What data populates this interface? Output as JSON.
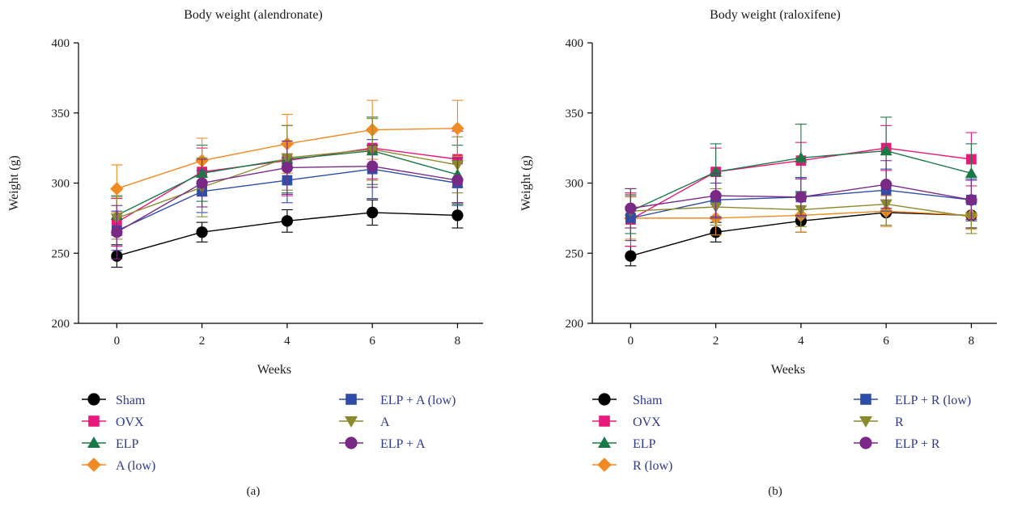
{
  "chart_data": [
    {
      "type": "line",
      "panel_label": "(a)",
      "title": "Body weight (alendronate)",
      "xlabel": "Weeks",
      "ylabel": "Weight (g)",
      "x": [
        0,
        2,
        4,
        6,
        8
      ],
      "xlim": [
        -0.9,
        8.6
      ],
      "ylim": [
        200,
        400
      ],
      "yticks": [
        200,
        250,
        300,
        350,
        400
      ],
      "xticks": [
        0,
        2,
        4,
        6,
        8
      ],
      "grid": false,
      "legend_position": "bottom",
      "series": [
        {
          "name": "Sham",
          "color": "#000000",
          "marker": "circle",
          "values": [
            248,
            265,
            273,
            279,
            277
          ],
          "errors": [
            8,
            7,
            8,
            9,
            9
          ]
        },
        {
          "name": "OVX",
          "color": "#e8197a",
          "marker": "square",
          "values": [
            272,
            308,
            316,
            325,
            317
          ],
          "errors": [
            17,
            17,
            25,
            22,
            20
          ]
        },
        {
          "name": "ELP",
          "color": "#1a7a46",
          "marker": "triangle-up",
          "values": [
            277,
            307,
            317,
            323,
            306
          ],
          "errors": [
            14,
            20,
            24,
            24,
            21
          ]
        },
        {
          "name": "A (low)",
          "color": "#f08a23",
          "marker": "diamond",
          "values": [
            296,
            316,
            328,
            338,
            339
          ],
          "errors": [
            17,
            16,
            21,
            21,
            20
          ]
        },
        {
          "name": "ELP + A (low)",
          "color": "#2e4ca8",
          "marker": "square",
          "values": [
            266,
            294,
            302,
            310,
            300
          ],
          "errors": [
            14,
            15,
            16,
            21,
            16
          ]
        },
        {
          "name": "A",
          "color": "#8a8a2e",
          "marker": "triangle-down",
          "values": [
            275,
            297,
            318,
            324,
            313
          ],
          "errors": [
            15,
            21,
            23,
            22,
            20
          ]
        },
        {
          "name": "ELP + A",
          "color": "#7a2a86",
          "marker": "circle",
          "values": [
            265,
            300,
            311,
            312,
            302
          ],
          "errors": [
            19,
            17,
            19,
            15,
            16
          ]
        }
      ]
    },
    {
      "type": "line",
      "panel_label": "(b)",
      "title": "Body weight (raloxifene)",
      "xlabel": "Weeks",
      "ylabel": "Weight (g)",
      "x": [
        0,
        2,
        4,
        6,
        8
      ],
      "xlim": [
        -0.9,
        8.6
      ],
      "ylim": [
        200,
        400
      ],
      "yticks": [
        200,
        250,
        300,
        350,
        400
      ],
      "xticks": [
        0,
        2,
        4,
        6,
        8
      ],
      "grid": false,
      "legend_position": "bottom",
      "series": [
        {
          "name": "Sham",
          "color": "#000000",
          "marker": "circle",
          "values": [
            248,
            265,
            273,
            279,
            277
          ],
          "errors": [
            7,
            7,
            8,
            9,
            9
          ]
        },
        {
          "name": "OVX",
          "color": "#e8197a",
          "marker": "square",
          "values": [
            274,
            308,
            316,
            325,
            317
          ],
          "errors": [
            19,
            17,
            13,
            16,
            19
          ]
        },
        {
          "name": "ELP",
          "color": "#1a7a46",
          "marker": "triangle-up",
          "values": [
            280,
            308,
            318,
            323,
            307
          ],
          "errors": [
            16,
            20,
            24,
            24,
            21
          ]
        },
        {
          "name": "R (low)",
          "color": "#f08a23",
          "marker": "diamond",
          "values": [
            275,
            275,
            277,
            280,
            277
          ],
          "errors": [
            15,
            12,
            12,
            11,
            10
          ]
        },
        {
          "name": "ELP + R (low)",
          "color": "#2e4ca8",
          "marker": "square",
          "values": [
            275,
            288,
            290,
            295,
            288
          ],
          "errors": [
            16,
            12,
            14,
            15,
            15
          ]
        },
        {
          "name": "R",
          "color": "#8a8a2e",
          "marker": "triangle-down",
          "values": [
            280,
            283,
            281,
            285,
            276
          ],
          "errors": [
            12,
            13,
            12,
            15,
            12
          ]
        },
        {
          "name": "ELP + R",
          "color": "#7a2a86",
          "marker": "circle",
          "values": [
            282,
            291,
            290,
            299,
            288
          ],
          "errors": [
            14,
            16,
            13,
            17,
            14
          ]
        }
      ]
    }
  ]
}
